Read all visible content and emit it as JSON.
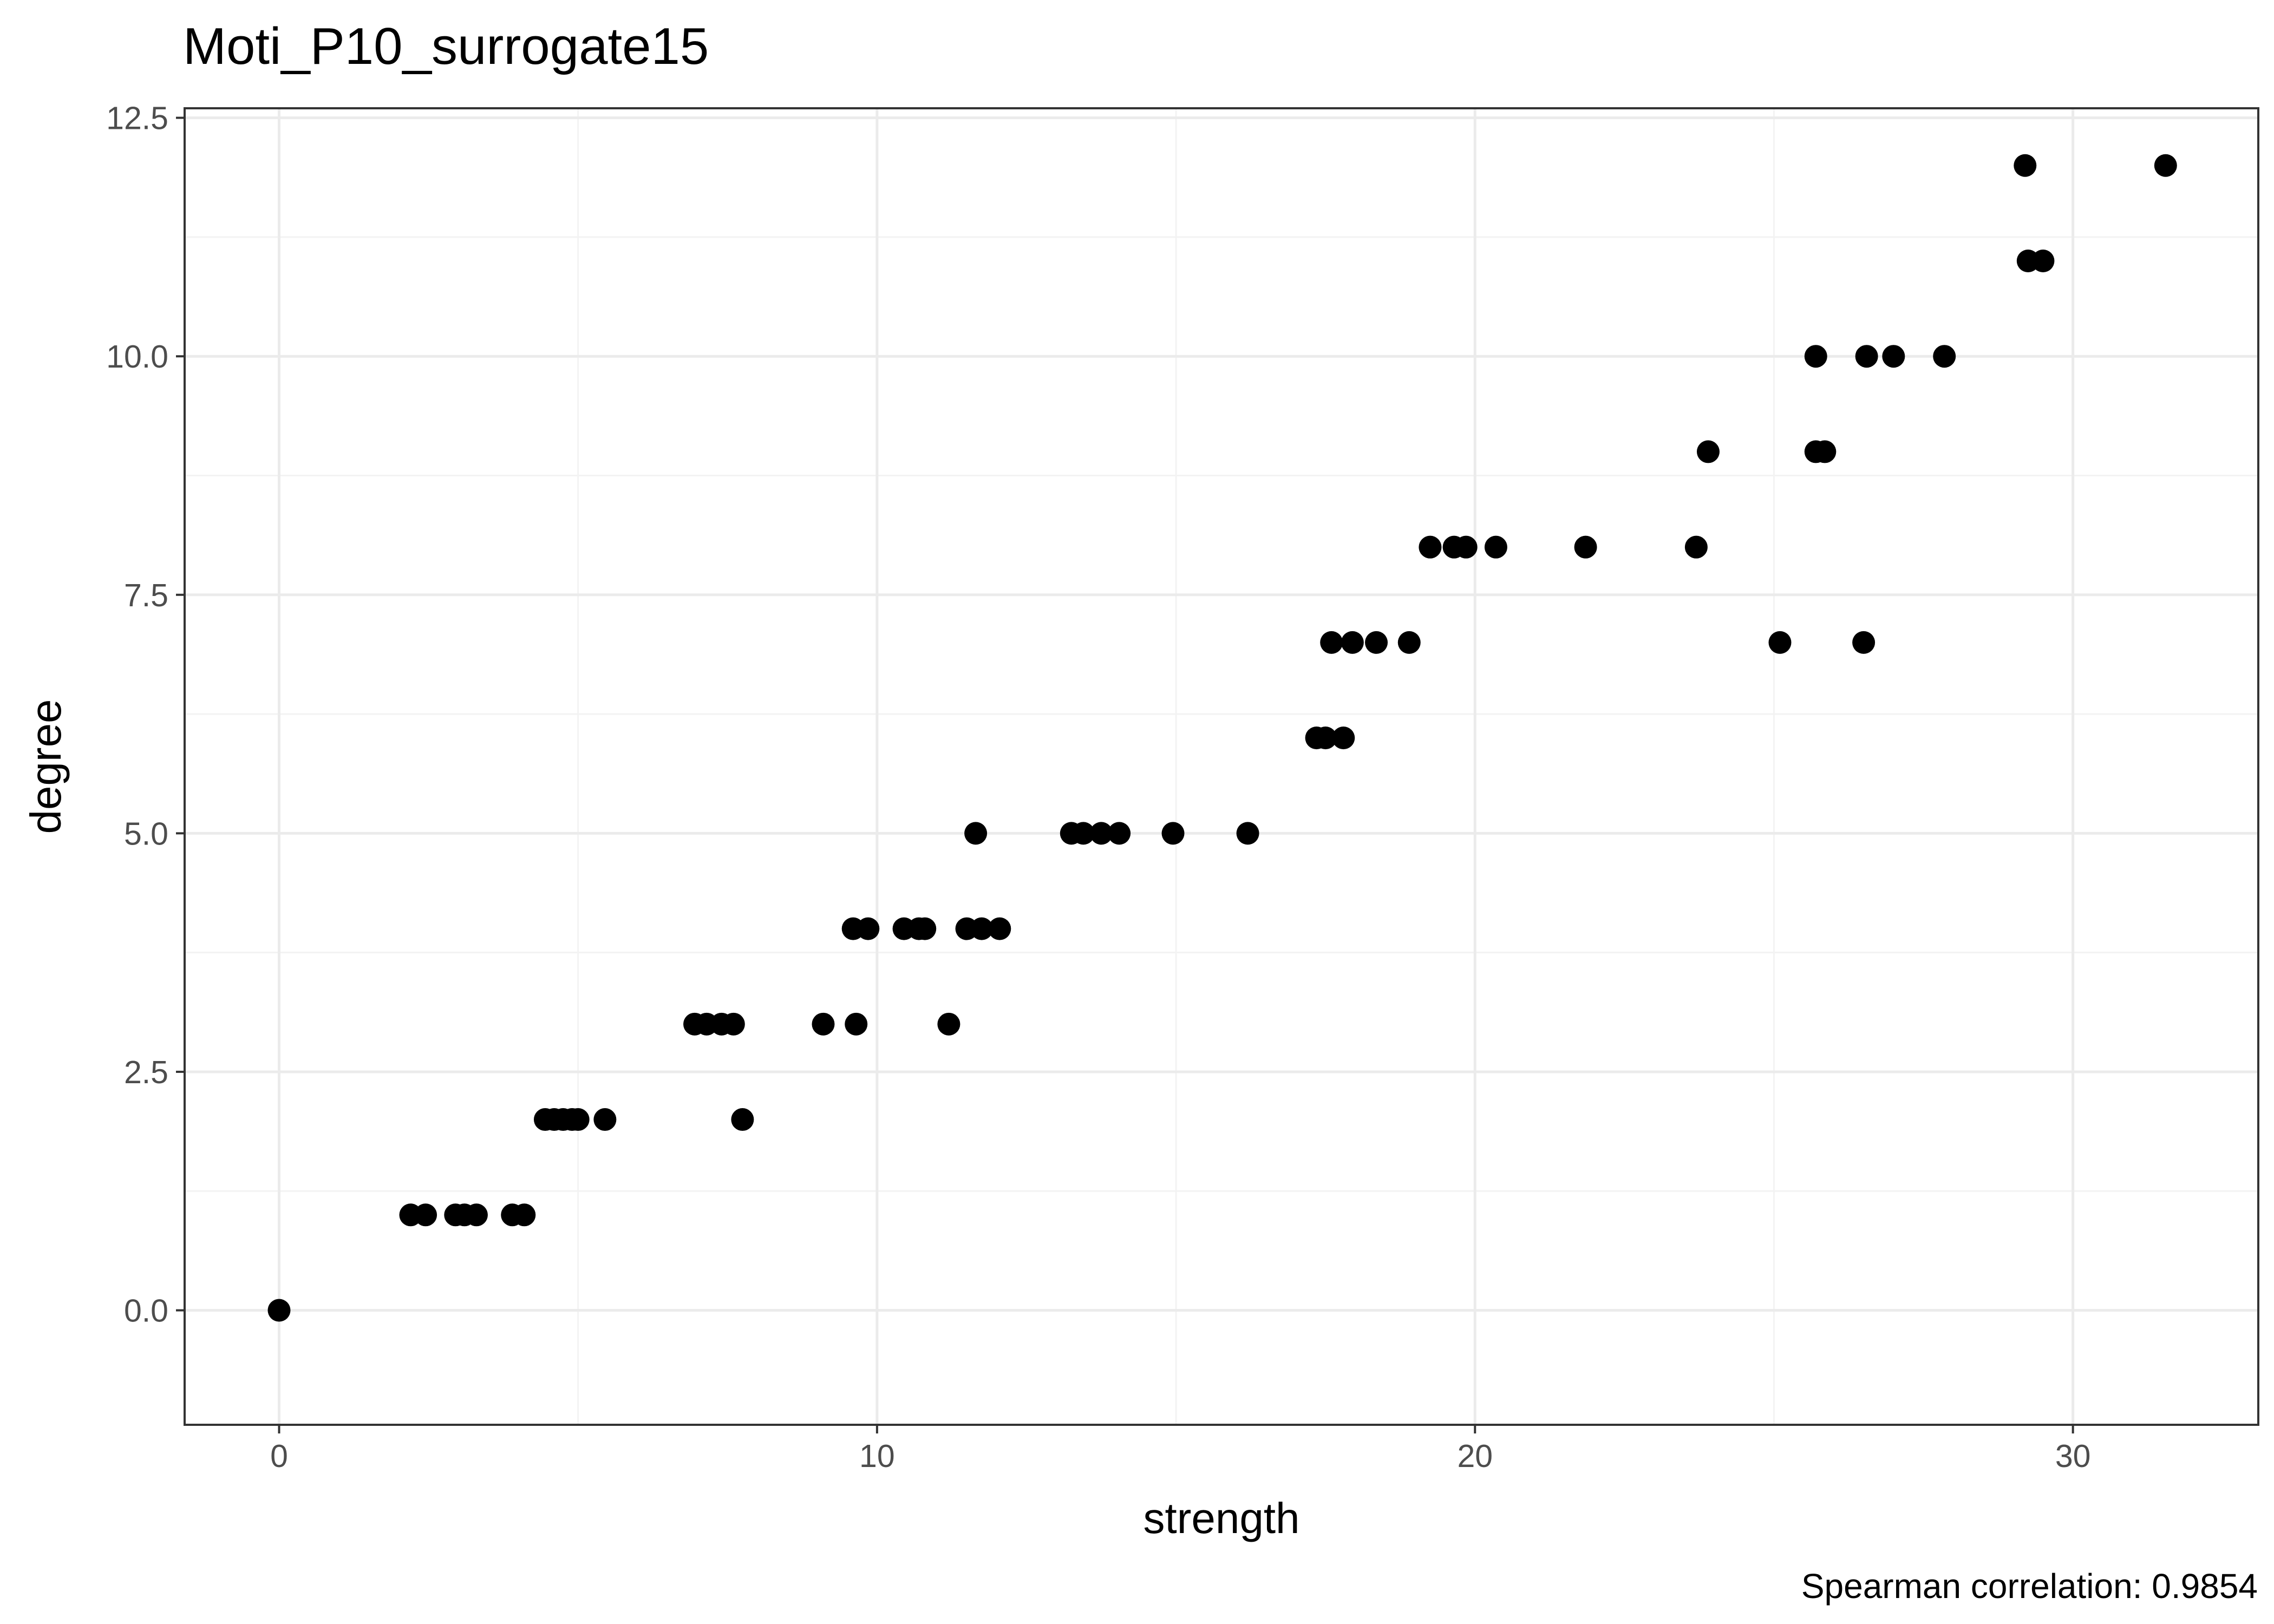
{
  "chart_data": {
    "type": "scatter",
    "title": "Moti_P10_surrogate15",
    "xlabel": "strength",
    "ylabel": "degree",
    "caption": "Spearman correlation: 0.9854",
    "xlim": [
      -1.58,
      33.1
    ],
    "ylim": [
      -1.2,
      12.6
    ],
    "x_ticks": [
      0,
      10,
      20,
      30
    ],
    "x_tick_labels": [
      "0",
      "10",
      "20",
      "30"
    ],
    "y_ticks": [
      0,
      2.5,
      5,
      7.5,
      10,
      12.5
    ],
    "y_tick_labels": [
      "0.0",
      "2.5",
      "5.0",
      "7.5",
      "10.0",
      "12.5"
    ],
    "grid": true,
    "point_color": "#000000",
    "points": [
      {
        "x": 0,
        "y": 0
      },
      {
        "x": 2.2,
        "y": 1
      },
      {
        "x": 2.45,
        "y": 1
      },
      {
        "x": 2.95,
        "y": 1
      },
      {
        "x": 3.1,
        "y": 1
      },
      {
        "x": 3.3,
        "y": 1
      },
      {
        "x": 3.9,
        "y": 1
      },
      {
        "x": 4.1,
        "y": 1
      },
      {
        "x": 4.45,
        "y": 2
      },
      {
        "x": 4.6,
        "y": 2
      },
      {
        "x": 4.75,
        "y": 2
      },
      {
        "x": 4.9,
        "y": 2
      },
      {
        "x": 5.0,
        "y": 2
      },
      {
        "x": 5.45,
        "y": 2
      },
      {
        "x": 7.75,
        "y": 2
      },
      {
        "x": 6.95,
        "y": 3
      },
      {
        "x": 7.15,
        "y": 3
      },
      {
        "x": 7.4,
        "y": 3
      },
      {
        "x": 7.6,
        "y": 3
      },
      {
        "x": 9.1,
        "y": 3
      },
      {
        "x": 9.65,
        "y": 3
      },
      {
        "x": 11.2,
        "y": 3
      },
      {
        "x": 9.6,
        "y": 4
      },
      {
        "x": 9.85,
        "y": 4
      },
      {
        "x": 10.45,
        "y": 4
      },
      {
        "x": 10.7,
        "y": 4
      },
      {
        "x": 10.8,
        "y": 4
      },
      {
        "x": 11.5,
        "y": 4
      },
      {
        "x": 11.75,
        "y": 4
      },
      {
        "x": 12.05,
        "y": 4
      },
      {
        "x": 11.65,
        "y": 5
      },
      {
        "x": 13.25,
        "y": 5
      },
      {
        "x": 13.45,
        "y": 5
      },
      {
        "x": 13.75,
        "y": 5
      },
      {
        "x": 14.05,
        "y": 5
      },
      {
        "x": 14.95,
        "y": 5
      },
      {
        "x": 16.2,
        "y": 5
      },
      {
        "x": 17.35,
        "y": 6
      },
      {
        "x": 17.5,
        "y": 6
      },
      {
        "x": 17.8,
        "y": 6
      },
      {
        "x": 17.6,
        "y": 7
      },
      {
        "x": 17.95,
        "y": 7
      },
      {
        "x": 18.35,
        "y": 7
      },
      {
        "x": 18.9,
        "y": 7
      },
      {
        "x": 25.1,
        "y": 7
      },
      {
        "x": 26.5,
        "y": 7
      },
      {
        "x": 19.25,
        "y": 8
      },
      {
        "x": 19.65,
        "y": 8
      },
      {
        "x": 19.85,
        "y": 8
      },
      {
        "x": 20.35,
        "y": 8
      },
      {
        "x": 21.85,
        "y": 8
      },
      {
        "x": 23.7,
        "y": 8
      },
      {
        "x": 23.9,
        "y": 9
      },
      {
        "x": 25.7,
        "y": 9
      },
      {
        "x": 25.85,
        "y": 9
      },
      {
        "x": 25.7,
        "y": 10
      },
      {
        "x": 26.55,
        "y": 10
      },
      {
        "x": 27.0,
        "y": 10
      },
      {
        "x": 27.85,
        "y": 10
      },
      {
        "x": 29.25,
        "y": 11
      },
      {
        "x": 29.5,
        "y": 11
      },
      {
        "x": 29.2,
        "y": 12
      },
      {
        "x": 31.55,
        "y": 12
      }
    ]
  }
}
